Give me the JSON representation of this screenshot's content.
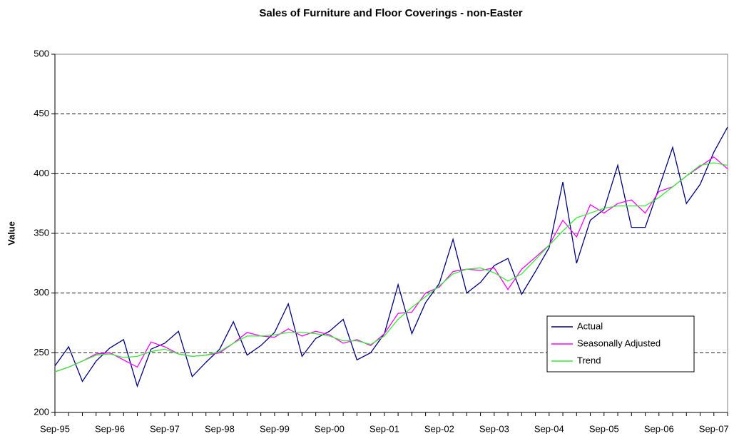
{
  "chart_data": {
    "type": "line",
    "title": "Sales of Furniture and Floor Coverings - non-Easter",
    "y_label": "Value",
    "categories": [
      "Sep-95",
      null,
      null,
      null,
      "Sep-96",
      null,
      null,
      null,
      "Sep-97",
      null,
      null,
      null,
      "Sep-98",
      null,
      null,
      null,
      "Sep-99",
      null,
      null,
      null,
      "Sep-00",
      null,
      null,
      null,
      "Sep-01",
      null,
      null,
      null,
      "Sep-02",
      null,
      null,
      null,
      "Sep-03",
      null,
      null,
      null,
      "Sep-04",
      null,
      null,
      null,
      "Sep-05",
      null,
      null,
      null,
      "Sep-06",
      null,
      null,
      null,
      "Sep-07",
      null
    ],
    "series": [
      {
        "name": "Actual",
        "color": "#000080",
        "values": [
          239,
          255,
          226,
          243,
          254,
          261,
          222,
          253,
          258,
          268,
          230,
          242,
          253,
          276,
          248,
          256,
          267,
          291,
          247,
          262,
          268,
          278,
          244,
          250,
          266,
          307,
          266,
          292,
          308,
          345,
          300,
          309,
          323,
          329,
          299,
          318,
          338,
          393,
          325,
          361,
          370,
          407,
          355,
          355,
          388,
          422,
          375,
          391,
          418,
          439
        ]
      },
      {
        "name": "Seasonally Adjusted",
        "color": "#ff00ff",
        "values": [
          234,
          238,
          243,
          249,
          250,
          244,
          238,
          259,
          255,
          249,
          247,
          248,
          250,
          258,
          267,
          264,
          263,
          270,
          264,
          268,
          265,
          258,
          261,
          256,
          266,
          283,
          284,
          300,
          305,
          318,
          320,
          319,
          321,
          303,
          320,
          330,
          340,
          361,
          347,
          374,
          367,
          375,
          378,
          367,
          385,
          389,
          398,
          406,
          414,
          404
        ]
      },
      {
        "name": "Trend",
        "color": "#33ee33",
        "values": [
          234,
          238,
          243,
          248,
          249,
          246,
          247,
          251,
          253,
          249,
          247,
          248,
          251,
          258,
          264,
          264,
          265,
          267,
          267,
          266,
          264,
          260,
          260,
          257,
          264,
          278,
          288,
          297,
          306,
          316,
          320,
          321,
          317,
          310,
          316,
          328,
          340,
          352,
          363,
          367,
          371,
          373,
          373,
          373,
          380,
          389,
          398,
          407,
          409,
          407
        ]
      }
    ],
    "ylim": [
      200,
      500
    ],
    "yticks": [
      200,
      250,
      300,
      350,
      400,
      450,
      500
    ],
    "grid": true,
    "legend": "lower right"
  }
}
